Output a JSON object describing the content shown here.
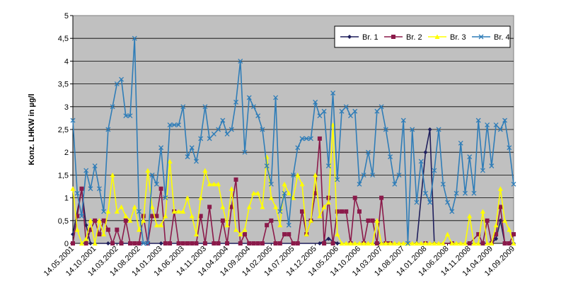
{
  "chart_data": {
    "type": "line",
    "ylabel": "Konz. LHKW in µg/l",
    "ylim": [
      0,
      5
    ],
    "y_ticks": [
      "0",
      "0,5",
      "1",
      "1,5",
      "2",
      "2,5",
      "3",
      "3,5",
      "4",
      "4,5",
      "5"
    ],
    "x_tick_labels": [
      "14.05.2001",
      "14.10.2001",
      "14.03.2002",
      "14.08.2002",
      "14.01.2003",
      "14.06.2003",
      "14.11.2003",
      "14.04.2004",
      "14.09.2004",
      "14.02.2005",
      "14.07.2005",
      "14.12.2005",
      "14.05.2006",
      "14.10.2006",
      "14.03.2007",
      "14.08.2007",
      "14.01.2008",
      "14.06.2008",
      "14.11.2008",
      "14.04.2009",
      "14.09.2009"
    ],
    "x_range": [
      0,
      100
    ],
    "plot_bg": "#c0c0c0",
    "gridlines": "horizontal",
    "legend_position": "top-right",
    "series": [
      {
        "name": "Br. 1",
        "color": "#1f1f5c",
        "marker": "diamond",
        "points": [
          [
            0,
            0.2
          ],
          [
            2,
            1.2
          ],
          [
            3,
            0.4
          ],
          [
            4,
            0
          ],
          [
            8,
            0
          ],
          [
            15,
            0
          ],
          [
            20,
            0
          ],
          [
            30,
            0
          ],
          [
            40,
            0
          ],
          [
            50,
            0
          ],
          [
            56,
            0
          ],
          [
            58,
            0.1
          ],
          [
            60,
            0
          ],
          [
            70,
            0
          ],
          [
            78,
            0
          ],
          [
            80,
            2
          ],
          [
            81,
            2.5
          ],
          [
            82,
            0
          ],
          [
            90,
            0
          ],
          [
            95,
            0
          ],
          [
            96,
            0.1
          ],
          [
            97,
            0.5
          ],
          [
            98,
            0
          ],
          [
            100,
            0
          ]
        ]
      },
      {
        "name": "Br. 2",
        "color": "#8b1a4a",
        "marker": "square",
        "points": [
          [
            0,
            0
          ],
          [
            1,
            0.6
          ],
          [
            2,
            1.2
          ],
          [
            3,
            0
          ],
          [
            4,
            0.3
          ],
          [
            5,
            0.5
          ],
          [
            6,
            0.2
          ],
          [
            7,
            0.5
          ],
          [
            8,
            0.3
          ],
          [
            9,
            0
          ],
          [
            10,
            0.3
          ],
          [
            11,
            0
          ],
          [
            12,
            0.5
          ],
          [
            13,
            0
          ],
          [
            14,
            0
          ],
          [
            15,
            0
          ],
          [
            16,
            0.6
          ],
          [
            17,
            0
          ],
          [
            18,
            0.6
          ],
          [
            19,
            0.6
          ],
          [
            20,
            1.2
          ],
          [
            21,
            0
          ],
          [
            22,
            0
          ],
          [
            23,
            0.7
          ],
          [
            24,
            0
          ],
          [
            25,
            0
          ],
          [
            26,
            0
          ],
          [
            27,
            0
          ],
          [
            28,
            0
          ],
          [
            29,
            0.6
          ],
          [
            30,
            0
          ],
          [
            31,
            0.8
          ],
          [
            32,
            0
          ],
          [
            33,
            0
          ],
          [
            34,
            0.5
          ],
          [
            35,
            0
          ],
          [
            36,
            0.8
          ],
          [
            37,
            1.4
          ],
          [
            38,
            0
          ],
          [
            39,
            0.2
          ],
          [
            40,
            0
          ],
          [
            41,
            0
          ],
          [
            42,
            0
          ],
          [
            43,
            0
          ],
          [
            44,
            0.4
          ],
          [
            45,
            0.5
          ],
          [
            46,
            0
          ],
          [
            47,
            0
          ],
          [
            48,
            0.2
          ],
          [
            49,
            0.2
          ],
          [
            50,
            0
          ],
          [
            51,
            0
          ],
          [
            52,
            0.7
          ],
          [
            53,
            0.2
          ],
          [
            54,
            0.5
          ],
          [
            55,
            1.1
          ],
          [
            56,
            2.3
          ],
          [
            57,
            0
          ],
          [
            58,
            1
          ],
          [
            59,
            0
          ],
          [
            60,
            0.7
          ],
          [
            61,
            0.7
          ],
          [
            62,
            0.7
          ],
          [
            63,
            0
          ],
          [
            64,
            1
          ],
          [
            65,
            0.7
          ],
          [
            66,
            0
          ],
          [
            67,
            0.5
          ],
          [
            68,
            0.5
          ],
          [
            69,
            0
          ],
          [
            70,
            1
          ],
          [
            71,
            0
          ],
          [
            72,
            0
          ],
          [
            80,
            0
          ],
          [
            86,
            0
          ],
          [
            90,
            0
          ],
          [
            92,
            0.2
          ],
          [
            93,
            0
          ],
          [
            94,
            0.5
          ],
          [
            95,
            0
          ],
          [
            96,
            0.2
          ],
          [
            97,
            0.8
          ],
          [
            98,
            0
          ],
          [
            99,
            0
          ],
          [
            100,
            0.2
          ]
        ]
      },
      {
        "name": "Br. 3",
        "color": "#ffff00",
        "marker": "triangle",
        "points": [
          [
            0,
            1.2
          ],
          [
            1,
            0.3
          ],
          [
            2,
            0
          ],
          [
            3,
            0.1
          ],
          [
            4,
            0.5
          ],
          [
            5,
            0
          ],
          [
            6,
            0.5
          ],
          [
            7,
            0.2
          ],
          [
            8,
            0.7
          ],
          [
            9,
            1.5
          ],
          [
            10,
            0.7
          ],
          [
            11,
            0.8
          ],
          [
            12,
            0.6
          ],
          [
            13,
            0.5
          ],
          [
            14,
            0.8
          ],
          [
            15,
            0.3
          ],
          [
            16,
            0.5
          ],
          [
            17,
            1.6
          ],
          [
            18,
            0.8
          ],
          [
            19,
            0.4
          ],
          [
            20,
            0.4
          ],
          [
            21,
            0.6
          ],
          [
            22,
            1.8
          ],
          [
            23,
            0.7
          ],
          [
            24,
            0.7
          ],
          [
            25,
            0.7
          ],
          [
            26,
            1
          ],
          [
            27,
            0.6
          ],
          [
            28,
            0.2
          ],
          [
            29,
            1
          ],
          [
            30,
            1.6
          ],
          [
            31,
            1.3
          ],
          [
            32,
            1.3
          ],
          [
            33,
            1.3
          ],
          [
            34,
            0.8
          ],
          [
            35,
            0.4
          ],
          [
            36,
            1.2
          ],
          [
            37,
            0.3
          ],
          [
            38,
            0.2
          ],
          [
            39,
            0.3
          ],
          [
            40,
            0.8
          ],
          [
            41,
            1.1
          ],
          [
            42,
            1.1
          ],
          [
            43,
            0.8
          ],
          [
            44,
            1.9
          ],
          [
            45,
            1
          ],
          [
            46,
            0.8
          ],
          [
            47,
            0.4
          ],
          [
            48,
            1.3
          ],
          [
            49,
            1.1
          ],
          [
            50,
            1
          ],
          [
            51,
            1.5
          ],
          [
            52,
            1.3
          ],
          [
            53,
            0.2
          ],
          [
            54,
            0.5
          ],
          [
            55,
            1.5
          ],
          [
            56,
            0.6
          ],
          [
            57,
            0.8
          ],
          [
            58,
            0.9
          ],
          [
            59,
            2.6
          ],
          [
            60,
            0.2
          ],
          [
            61,
            0
          ],
          [
            62,
            0
          ],
          [
            63,
            0
          ],
          [
            64,
            0
          ],
          [
            65,
            0
          ],
          [
            66,
            0
          ],
          [
            67,
            0
          ],
          [
            68,
            0
          ],
          [
            69,
            0.5
          ],
          [
            70,
            0
          ],
          [
            71,
            0
          ],
          [
            72,
            0
          ],
          [
            73,
            0
          ],
          [
            74,
            0
          ],
          [
            75,
            0
          ],
          [
            76,
            0
          ],
          [
            77,
            0
          ],
          [
            78,
            0
          ],
          [
            79,
            0
          ],
          [
            80,
            0
          ],
          [
            81,
            0
          ],
          [
            82,
            0
          ],
          [
            83,
            0
          ],
          [
            84,
            0
          ],
          [
            85,
            0.2
          ],
          [
            86,
            0
          ],
          [
            87,
            0
          ],
          [
            88,
            0
          ],
          [
            89,
            0
          ],
          [
            90,
            0.6
          ],
          [
            91,
            0
          ],
          [
            92,
            0
          ],
          [
            93,
            0.7
          ],
          [
            94,
            0
          ],
          [
            95,
            0
          ],
          [
            96,
            0.4
          ],
          [
            97,
            1.2
          ],
          [
            98,
            0.5
          ],
          [
            99,
            0.3
          ],
          [
            100,
            0
          ]
        ]
      },
      {
        "name": "Br. 4",
        "color": "#2f7db8",
        "marker": "x",
        "points": [
          [
            0,
            2.7
          ],
          [
            1,
            1.1
          ],
          [
            2,
            0.6
          ],
          [
            3,
            1.6
          ],
          [
            4,
            1.2
          ],
          [
            5,
            1.7
          ],
          [
            6,
            1.2
          ],
          [
            7,
            0.7
          ],
          [
            8,
            2.5
          ],
          [
            9,
            3
          ],
          [
            10,
            3.5
          ],
          [
            11,
            3.6
          ],
          [
            12,
            2.8
          ],
          [
            13,
            2.8
          ],
          [
            14,
            4.5
          ],
          [
            15,
            0.7
          ],
          [
            16,
            0
          ],
          [
            17,
            0
          ],
          [
            18,
            1.5
          ],
          [
            19,
            1.3
          ],
          [
            20,
            2.1
          ],
          [
            21,
            1
          ],
          [
            22,
            2.6
          ],
          [
            23,
            2.6
          ],
          [
            24,
            2.6
          ],
          [
            25,
            3
          ],
          [
            26,
            1.9
          ],
          [
            27,
            2.1
          ],
          [
            28,
            1.8
          ],
          [
            29,
            2.3
          ],
          [
            30,
            3
          ],
          [
            31,
            2.3
          ],
          [
            32,
            2.4
          ],
          [
            33,
            2.5
          ],
          [
            34,
            2.7
          ],
          [
            35,
            2.4
          ],
          [
            36,
            2.5
          ],
          [
            37,
            3.1
          ],
          [
            38,
            4
          ],
          [
            39,
            2
          ],
          [
            40,
            3.2
          ],
          [
            41,
            3
          ],
          [
            42,
            2.8
          ],
          [
            43,
            2.5
          ],
          [
            44,
            1.7
          ],
          [
            45,
            1.3
          ],
          [
            46,
            3.2
          ],
          [
            47,
            0.7
          ],
          [
            48,
            1.1
          ],
          [
            49,
            0.4
          ],
          [
            50,
            1.5
          ],
          [
            51,
            2.1
          ],
          [
            52,
            2.3
          ],
          [
            53,
            2.3
          ],
          [
            54,
            2.3
          ],
          [
            55,
            3.1
          ],
          [
            56,
            2.8
          ],
          [
            57,
            2.9
          ],
          [
            58,
            1.7
          ],
          [
            59,
            3.3
          ],
          [
            60,
            1.4
          ],
          [
            61,
            2.9
          ],
          [
            62,
            3
          ],
          [
            63,
            2.8
          ],
          [
            64,
            2.9
          ],
          [
            65,
            1.3
          ],
          [
            66,
            1.5
          ],
          [
            67,
            2
          ],
          [
            68,
            1.5
          ],
          [
            69,
            2.9
          ],
          [
            70,
            3
          ],
          [
            71,
            2.5
          ],
          [
            72,
            1.9
          ],
          [
            73,
            1.3
          ],
          [
            74,
            1.5
          ],
          [
            75,
            2.7
          ],
          [
            76,
            0
          ],
          [
            77,
            2.5
          ],
          [
            78,
            0.9
          ],
          [
            79,
            1.8
          ],
          [
            80,
            1.1
          ],
          [
            81,
            0.9
          ],
          [
            82,
            1.6
          ],
          [
            83,
            2.5
          ],
          [
            84,
            1.3
          ],
          [
            85,
            0.9
          ],
          [
            86,
            0.7
          ],
          [
            87,
            1.1
          ],
          [
            88,
            2.2
          ],
          [
            89,
            1.1
          ],
          [
            90,
            1.9
          ],
          [
            91,
            1.1
          ],
          [
            92,
            2.7
          ],
          [
            93,
            1.6
          ],
          [
            94,
            2.6
          ],
          [
            95,
            1.7
          ],
          [
            96,
            2.6
          ],
          [
            97,
            2.5
          ],
          [
            98,
            2.7
          ],
          [
            99,
            2.1
          ],
          [
            100,
            1.3
          ]
        ]
      }
    ]
  }
}
